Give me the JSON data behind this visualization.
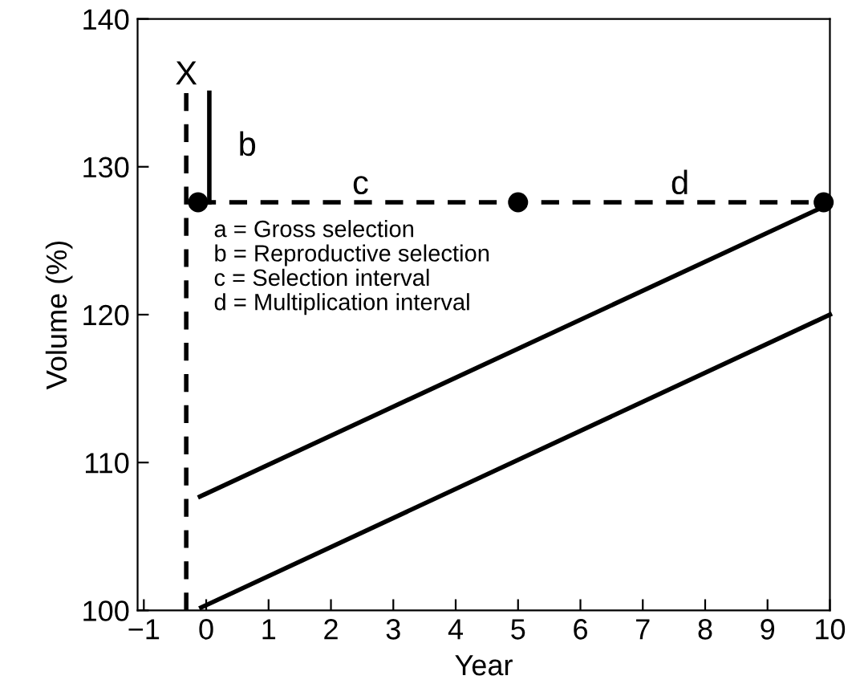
{
  "chart_data": {
    "type": "line",
    "xlabel": "Year",
    "ylabel": "Volume (%)",
    "xlim": [
      -1.1,
      10
    ],
    "ylim": [
      100,
      140
    ],
    "xticks": [
      -1,
      0,
      1,
      2,
      3,
      4,
      5,
      6,
      7,
      8,
      9,
      10
    ],
    "yticks": [
      100,
      110,
      120,
      130,
      140
    ],
    "grid": false,
    "legend": false,
    "series": [
      {
        "color": "#000000",
        "x": [
          -0.08,
          10
        ],
        "values": [
          100.2,
          120
        ],
        "line_style": "solid",
        "marker": "none"
      },
      {
        "color": "#000000",
        "x": [
          -0.1,
          10
        ],
        "values": [
          107.7,
          127.5
        ],
        "line_style": "solid",
        "marker": "none"
      },
      {
        "color": "#000000",
        "x": [
          -0.13,
          5,
          9.9
        ],
        "values": [
          127.6,
          127.6,
          127.6
        ],
        "line_style": "dashed",
        "marker": "circle"
      },
      {
        "color": "#000000",
        "x": [
          -0.32,
          -0.32
        ],
        "values": [
          100,
          135.1
        ],
        "line_style": "dashed",
        "marker": "none"
      },
      {
        "color": "#000000",
        "x": [
          0.05,
          0.05
        ],
        "values": [
          127.6,
          135
        ],
        "line_style": "solid",
        "marker": "none"
      }
    ],
    "annotations": [
      {
        "text": "X",
        "x": -0.32,
        "y": 135.1
      },
      "b",
      "c",
      "d",
      "a = Gross selection\nb = Reproductive selection\nc = Selection interval\nd = Multiplication interval"
    ]
  }
}
